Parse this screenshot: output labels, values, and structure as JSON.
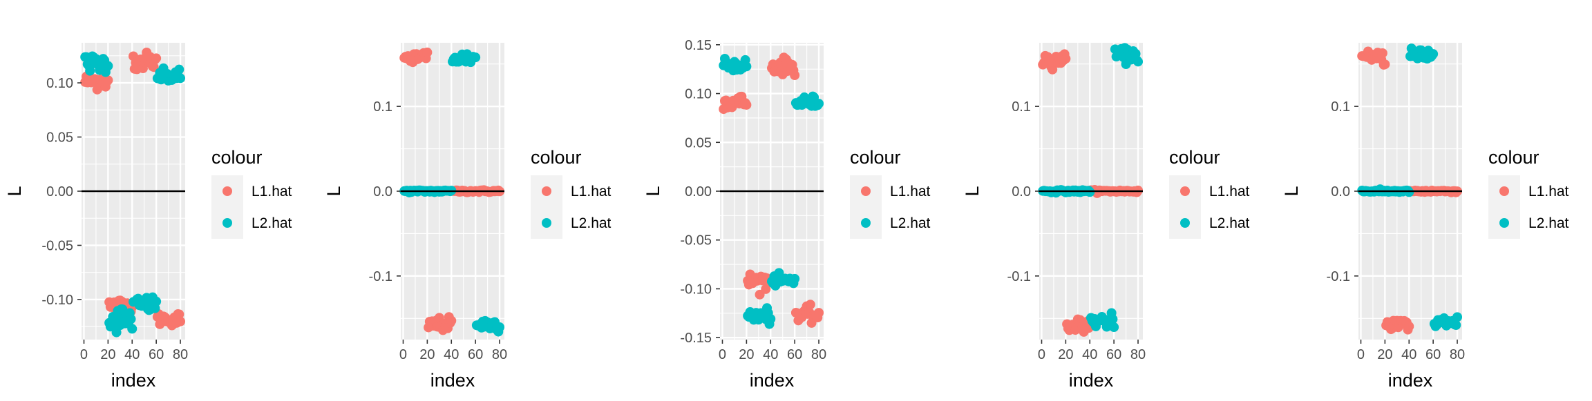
{
  "colors": {
    "L1.hat": "#F8766D",
    "L2.hat": "#00BFC4",
    "panel_bg": "#EBEBEB",
    "grid": "#FFFFFF",
    "zero_line": "#000000"
  },
  "chart_data": [
    {
      "type": "scatter",
      "xlabel": "index",
      "ylabel": "L",
      "xlim": [
        -2,
        84
      ],
      "ylim": [
        -0.137,
        0.137
      ],
      "x_ticks": [
        0,
        20,
        40,
        60,
        80
      ],
      "x_tick_labels": [
        "0",
        "20",
        "40",
        "60",
        "80"
      ],
      "y_ticks": [
        -0.1,
        -0.05,
        0.0,
        0.05,
        0.1
      ],
      "y_tick_labels": [
        "-0.10",
        "-0.05",
        "0.00",
        "0.05",
        "0.10"
      ],
      "hline": 0,
      "legend_title": "colour",
      "legend_labels": [
        "L1.hat",
        "L2.hat"
      ],
      "series": [
        {
          "name": "L1.hat",
          "clusters": [
            {
              "x": [
                1,
                20
              ],
              "y": 0.102,
              "spread": 0.004
            },
            {
              "x": [
                21,
                40
              ],
              "y": -0.106,
              "spread": 0.004
            },
            {
              "x": [
                41,
                60
              ],
              "y": 0.12,
              "spread": 0.004
            },
            {
              "x": [
                61,
                80
              ],
              "y": -0.118,
              "spread": 0.003
            }
          ]
        },
        {
          "name": "L2.hat",
          "clusters": [
            {
              "x": [
                1,
                20
              ],
              "y": 0.118,
              "spread": 0.004
            },
            {
              "x": [
                21,
                40
              ],
              "y": -0.118,
              "spread": 0.006
            },
            {
              "x": [
                41,
                60
              ],
              "y": -0.105,
              "spread": 0.004
            },
            {
              "x": [
                61,
                80
              ],
              "y": 0.106,
              "spread": 0.003
            }
          ]
        }
      ]
    },
    {
      "type": "scatter",
      "xlabel": "index",
      "ylabel": "L",
      "xlim": [
        -2,
        84
      ],
      "ylim": [
        -0.175,
        0.175
      ],
      "x_ticks": [
        0,
        20,
        40,
        60,
        80
      ],
      "x_tick_labels": [
        "0",
        "20",
        "40",
        "60",
        "80"
      ],
      "y_ticks": [
        -0.1,
        0.0,
        0.1
      ],
      "y_tick_labels": [
        "-0.1",
        "0.0",
        "0.1"
      ],
      "hline": 0,
      "legend_title": "colour",
      "legend_labels": [
        "L1.hat",
        "L2.hat"
      ],
      "series": [
        {
          "name": "L1.hat",
          "clusters": [
            {
              "x": [
                1,
                20
              ],
              "y": 0.157,
              "spread": 0.004
            },
            {
              "x": [
                21,
                40
              ],
              "y": -0.157,
              "spread": 0.004
            },
            {
              "x": [
                41,
                80
              ],
              "y": 0.0,
              "spread": 0.0007
            }
          ]
        },
        {
          "name": "L2.hat",
          "clusters": [
            {
              "x": [
                1,
                40
              ],
              "y": 0.0,
              "spread": 0.0007
            },
            {
              "x": [
                41,
                60
              ],
              "y": 0.157,
              "spread": 0.004
            },
            {
              "x": [
                61,
                80
              ],
              "y": -0.157,
              "spread": 0.004
            }
          ]
        }
      ]
    },
    {
      "type": "scatter",
      "xlabel": "index",
      "ylabel": "L",
      "xlim": [
        -2,
        84
      ],
      "ylim": [
        -0.152,
        0.152
      ],
      "x_ticks": [
        0,
        20,
        40,
        60,
        80
      ],
      "x_tick_labels": [
        "0",
        "20",
        "40",
        "60",
        "80"
      ],
      "y_ticks": [
        -0.15,
        -0.1,
        -0.05,
        0.0,
        0.05,
        0.1,
        0.15
      ],
      "y_tick_labels": [
        "-0.15",
        "-0.10",
        "-0.05",
        "0.00",
        "0.05",
        "0.10",
        "0.15"
      ],
      "hline": 0,
      "legend_title": "colour",
      "legend_labels": [
        "L1.hat",
        "L2.hat"
      ],
      "series": [
        {
          "name": "L1.hat",
          "clusters": [
            {
              "x": [
                1,
                20
              ],
              "y": 0.091,
              "spread": 0.004
            },
            {
              "x": [
                21,
                40
              ],
              "y": -0.092,
              "spread": 0.004
            },
            {
              "x": [
                41,
                60
              ],
              "y": 0.128,
              "spread": 0.004
            },
            {
              "x": [
                61,
                80
              ],
              "y": -0.127,
              "spread": 0.004
            }
          ]
        },
        {
          "name": "L2.hat",
          "clusters": [
            {
              "x": [
                1,
                20
              ],
              "y": 0.129,
              "spread": 0.003
            },
            {
              "x": [
                21,
                40
              ],
              "y": -0.128,
              "spread": 0.004
            },
            {
              "x": [
                41,
                60
              ],
              "y": -0.092,
              "spread": 0.003
            },
            {
              "x": [
                61,
                80
              ],
              "y": 0.091,
              "spread": 0.003
            }
          ]
        }
      ]
    },
    {
      "type": "scatter",
      "xlabel": "index",
      "ylabel": "L",
      "xlim": [
        -2,
        84
      ],
      "ylim": [
        -0.175,
        0.175
      ],
      "x_ticks": [
        0,
        20,
        40,
        60,
        80
      ],
      "x_tick_labels": [
        "0",
        "20",
        "40",
        "60",
        "80"
      ],
      "y_ticks": [
        -0.1,
        0.0,
        0.1
      ],
      "y_tick_labels": [
        "-0.1",
        "0.0",
        "0.1"
      ],
      "hline": 0,
      "legend_title": "colour",
      "legend_labels": [
        "L1.hat",
        "L2.hat"
      ],
      "series": [
        {
          "name": "L1.hat",
          "clusters": [
            {
              "x": [
                1,
                20
              ],
              "y": 0.155,
              "spread": 0.004
            },
            {
              "x": [
                21,
                40
              ],
              "y": -0.158,
              "spread": 0.004
            },
            {
              "x": [
                41,
                80
              ],
              "y": 0.0,
              "spread": 0.0007
            }
          ]
        },
        {
          "name": "L2.hat",
          "clusters": [
            {
              "x": [
                1,
                40
              ],
              "y": 0.0,
              "spread": 0.0007
            },
            {
              "x": [
                41,
                60
              ],
              "y": -0.153,
              "spread": 0.004
            },
            {
              "x": [
                61,
                80
              ],
              "y": 0.16,
              "spread": 0.004
            }
          ]
        }
      ]
    },
    {
      "type": "scatter",
      "xlabel": "index",
      "ylabel": "L",
      "xlim": [
        -2,
        84
      ],
      "ylim": [
        -0.175,
        0.175
      ],
      "x_ticks": [
        0,
        20,
        40,
        60,
        80
      ],
      "x_tick_labels": [
        "0",
        "20",
        "40",
        "60",
        "80"
      ],
      "y_ticks": [
        -0.1,
        0.0,
        0.1
      ],
      "y_tick_labels": [
        "-0.1",
        "0.0",
        "0.1"
      ],
      "hline": 0,
      "legend_title": "colour",
      "legend_labels": [
        "L1.hat",
        "L2.hat"
      ],
      "series": [
        {
          "name": "L1.hat",
          "clusters": [
            {
              "x": [
                1,
                20
              ],
              "y": 0.157,
              "spread": 0.004
            },
            {
              "x": [
                21,
                40
              ],
              "y": -0.157,
              "spread": 0.004
            },
            {
              "x": [
                41,
                80
              ],
              "y": 0.0,
              "spread": 0.0007
            }
          ]
        },
        {
          "name": "L2.hat",
          "clusters": [
            {
              "x": [
                1,
                40
              ],
              "y": 0.0,
              "spread": 0.0007
            },
            {
              "x": [
                41,
                60
              ],
              "y": 0.16,
              "spread": 0.004
            },
            {
              "x": [
                61,
                80
              ],
              "y": -0.156,
              "spread": 0.004
            }
          ]
        }
      ]
    }
  ]
}
